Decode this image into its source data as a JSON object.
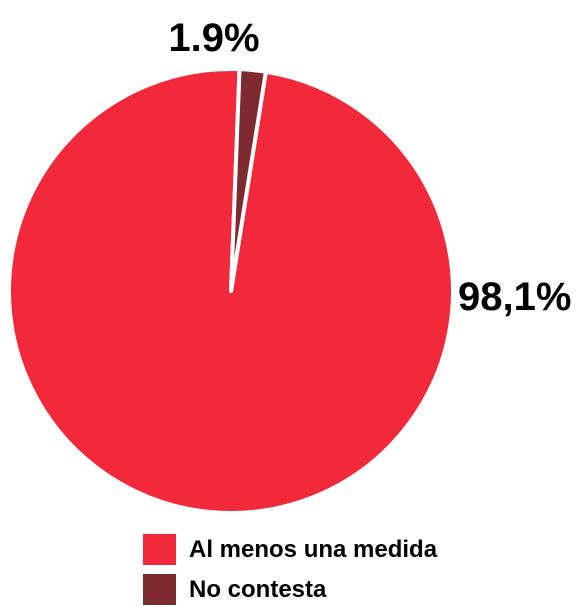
{
  "chart_data": {
    "type": "pie",
    "slices": [
      {
        "name": "Al menos una medida",
        "value": 98.1,
        "label": "98,1%",
        "color": "#f2293a"
      },
      {
        "name": "No contesta",
        "value": 1.9,
        "label": "1.9%",
        "color": "#7d2a30"
      }
    ],
    "legend": {
      "placement": "bottom",
      "items": [
        "Al menos una medida",
        "No contesta"
      ]
    },
    "title": ""
  }
}
